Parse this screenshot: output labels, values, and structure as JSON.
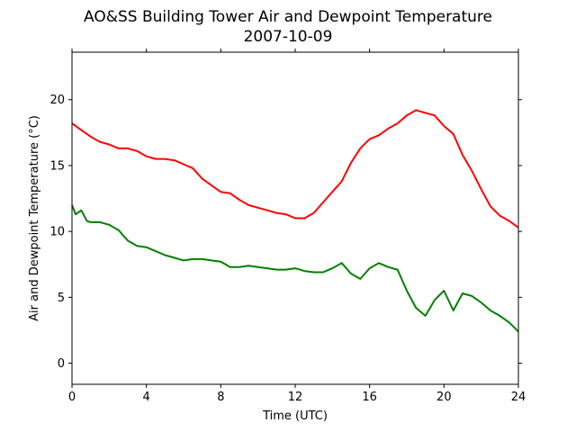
{
  "chart_data": {
    "type": "line",
    "title": "AO&SS Building Tower Air and Dewpoint Temperature",
    "subtitle": "2007-10-09",
    "xlabel": "Time (UTC)",
    "ylabel": "Air and Dewpoint Temperature (°C)",
    "xlim": [
      0,
      24
    ],
    "ylim": [
      -1.6,
      23.6
    ],
    "xticks": [
      0,
      4,
      8,
      12,
      16,
      20,
      24
    ],
    "yticks": [
      0,
      5,
      10,
      15,
      20
    ],
    "grid": false,
    "legend": "none",
    "series": [
      {
        "color": "#ff0000",
        "x": [
          0,
          0.5,
          1,
          1.5,
          2,
          2.5,
          3,
          3.5,
          4,
          4.5,
          5,
          5.5,
          6,
          6.5,
          7,
          7.5,
          8,
          8.5,
          9,
          9.5,
          10,
          10.5,
          11,
          11.5,
          12,
          12.5,
          13,
          13.5,
          14,
          14.5,
          15,
          15.5,
          16,
          16.5,
          17,
          17.5,
          18,
          18.5,
          19,
          19.5,
          20,
          20.5,
          21,
          21.5,
          22,
          22.5,
          23,
          23.5,
          24
        ],
        "y": [
          18.2,
          17.7,
          17.2,
          16.8,
          16.6,
          16.3,
          16.3,
          16.1,
          15.7,
          15.5,
          15.5,
          15.4,
          15.1,
          14.8,
          14.0,
          13.5,
          13.0,
          12.9,
          12.4,
          12.0,
          11.8,
          11.6,
          11.4,
          11.3,
          11.0,
          11.0,
          11.4,
          12.2,
          13.0,
          13.8,
          15.2,
          16.3,
          17.0,
          17.3,
          17.8,
          18.2,
          18.8,
          19.2,
          19.0,
          18.8,
          18.0,
          17.4,
          15.8,
          14.6,
          13.2,
          11.9,
          11.2,
          10.8,
          10.3
        ]
      },
      {
        "color": "#008000",
        "x": [
          0,
          0.2,
          0.5,
          0.8,
          1,
          1.5,
          2,
          2.5,
          3,
          3.5,
          4,
          4.5,
          5,
          5.5,
          6,
          6.5,
          7,
          7.5,
          8,
          8.5,
          9,
          9.5,
          10,
          10.5,
          11,
          11.5,
          12,
          12.5,
          13,
          13.5,
          14,
          14.5,
          15,
          15.5,
          16,
          16.5,
          17,
          17.5,
          18,
          18.5,
          19,
          19.5,
          20,
          20.5,
          21,
          21.5,
          22,
          22.5,
          23,
          23.5,
          24
        ],
        "y": [
          12.0,
          11.3,
          11.6,
          10.8,
          10.7,
          10.7,
          10.5,
          10.1,
          9.3,
          8.9,
          8.8,
          8.5,
          8.2,
          8.0,
          7.8,
          7.9,
          7.9,
          7.8,
          7.7,
          7.3,
          7.3,
          7.4,
          7.3,
          7.2,
          7.1,
          7.1,
          7.2,
          7.0,
          6.9,
          6.9,
          7.2,
          7.6,
          6.8,
          6.4,
          7.2,
          7.6,
          7.3,
          7.1,
          5.5,
          4.2,
          3.6,
          4.8,
          5.5,
          4.0,
          5.3,
          5.1,
          4.6,
          4.0,
          3.6,
          3.1,
          2.4
        ]
      }
    ]
  }
}
